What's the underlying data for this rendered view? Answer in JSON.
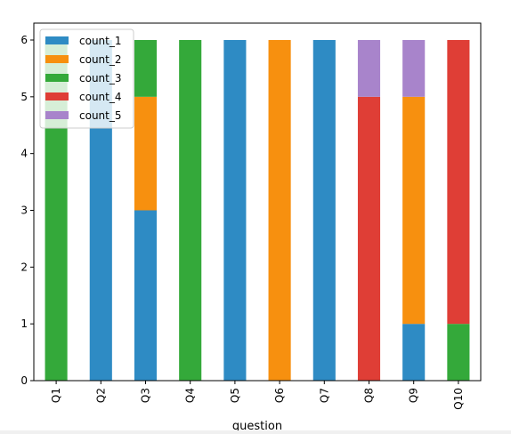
{
  "chart_data": {
    "type": "bar",
    "stacked": true,
    "title": "",
    "xlabel": "question",
    "ylabel": "",
    "categories": [
      "Q1",
      "Q2",
      "Q3",
      "Q4",
      "Q5",
      "Q6",
      "Q7",
      "Q8",
      "Q9",
      "Q10"
    ],
    "series": [
      {
        "name": "count_1",
        "color": "#2e8bc4",
        "values": [
          0,
          6,
          3,
          0,
          6,
          0,
          6,
          0,
          1,
          0
        ]
      },
      {
        "name": "count_2",
        "color": "#f7900f",
        "values": [
          0,
          0,
          2,
          0,
          0,
          6,
          0,
          0,
          4,
          0
        ]
      },
      {
        "name": "count_3",
        "color": "#34a93a",
        "values": [
          6,
          0,
          1,
          6,
          0,
          0,
          0,
          0,
          0,
          1
        ]
      },
      {
        "name": "count_4",
        "color": "#df3e36",
        "values": [
          0,
          0,
          0,
          0,
          0,
          0,
          0,
          5,
          0,
          5
        ]
      },
      {
        "name": "count_5",
        "color": "#a884cb",
        "values": [
          0,
          0,
          0,
          0,
          0,
          0,
          0,
          1,
          1,
          0
        ]
      }
    ],
    "ylim": [
      0,
      6
    ],
    "yticks": [
      0,
      1,
      2,
      3,
      4,
      5,
      6
    ],
    "grid": false,
    "legend_position": "top-left"
  }
}
